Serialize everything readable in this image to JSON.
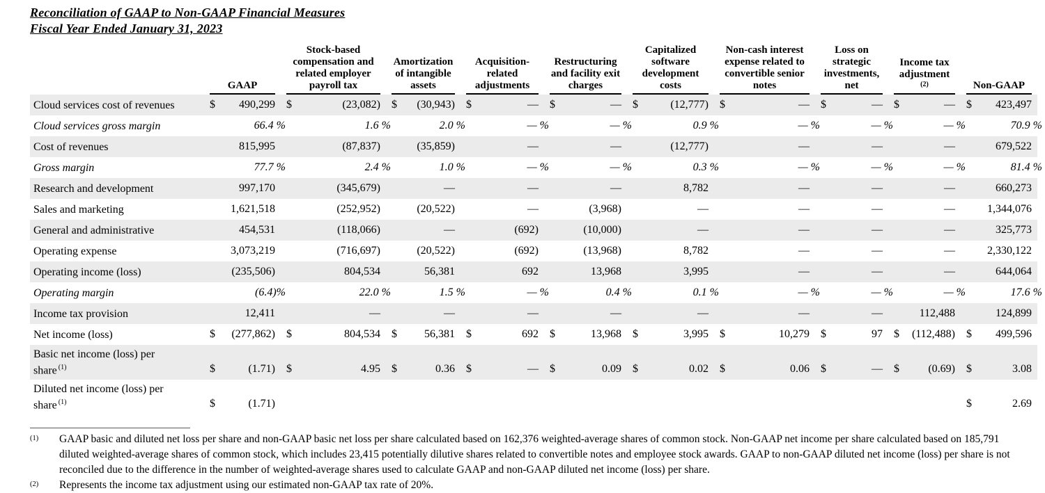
{
  "title": {
    "line1": "Reconciliation of GAAP to Non-GAAP Financial Measures",
    "line2": "Fiscal Year Ended January 31, 2023"
  },
  "table": {
    "value_columns": [
      {
        "label": "GAAP"
      },
      {
        "label": "Stock-based compensation and related employer payroll tax"
      },
      {
        "label": "Amortization of intangible assets"
      },
      {
        "label": "Acquisition-related adjustments"
      },
      {
        "label": "Restructuring and facility exit charges"
      },
      {
        "label": "Capitalized software development costs"
      },
      {
        "label": "Non-cash interest expense related to convertible senior notes"
      },
      {
        "label": "Loss on strategic investments, net"
      },
      {
        "label": "Income tax adjustment",
        "sup": "(2)"
      },
      {
        "label": "Non-GAAP"
      }
    ],
    "rows": [
      {
        "label": "Cloud services cost of revenues",
        "cells": [
          [
            "$",
            "490,299"
          ],
          [
            "$",
            "(23,082)"
          ],
          [
            "$",
            "(30,943)"
          ],
          [
            "$",
            "—"
          ],
          [
            "$",
            "—"
          ],
          [
            "$",
            "(12,777)"
          ],
          [
            "$",
            "—"
          ],
          [
            "$",
            "—"
          ],
          [
            "$",
            "—"
          ],
          [
            "$",
            "423,497"
          ]
        ]
      },
      {
        "label": "Cloud services gross margin",
        "italic": true,
        "cells": [
          [
            "",
            "66.4 %"
          ],
          [
            "",
            "1.6 %"
          ],
          [
            "",
            "2.0 %"
          ],
          [
            "",
            "— %"
          ],
          [
            "",
            "— %"
          ],
          [
            "",
            "0.9 %"
          ],
          [
            "",
            "— %"
          ],
          [
            "",
            "— %"
          ],
          [
            "",
            "— %"
          ],
          [
            "",
            "70.9 %"
          ]
        ]
      },
      {
        "label": "Cost of revenues",
        "cells": [
          [
            "",
            "815,995"
          ],
          [
            "",
            "(87,837)"
          ],
          [
            "",
            "(35,859)"
          ],
          [
            "",
            "—"
          ],
          [
            "",
            "—"
          ],
          [
            "",
            "(12,777)"
          ],
          [
            "",
            "—"
          ],
          [
            "",
            "—"
          ],
          [
            "",
            "—"
          ],
          [
            "",
            "679,522"
          ]
        ]
      },
      {
        "label": "Gross margin",
        "italic": true,
        "cells": [
          [
            "",
            "77.7 %"
          ],
          [
            "",
            "2.4 %"
          ],
          [
            "",
            "1.0 %"
          ],
          [
            "",
            "— %"
          ],
          [
            "",
            "— %"
          ],
          [
            "",
            "0.3 %"
          ],
          [
            "",
            "— %"
          ],
          [
            "",
            "— %"
          ],
          [
            "",
            "— %"
          ],
          [
            "",
            "81.4 %"
          ]
        ]
      },
      {
        "label": "Research and development",
        "cells": [
          [
            "",
            "997,170"
          ],
          [
            "",
            "(345,679)"
          ],
          [
            "",
            "—"
          ],
          [
            "",
            "—"
          ],
          [
            "",
            "—"
          ],
          [
            "",
            "8,782"
          ],
          [
            "",
            "—"
          ],
          [
            "",
            "—"
          ],
          [
            "",
            "—"
          ],
          [
            "",
            "660,273"
          ]
        ]
      },
      {
        "label": "Sales and marketing",
        "cells": [
          [
            "",
            "1,621,518"
          ],
          [
            "",
            "(252,952)"
          ],
          [
            "",
            "(20,522)"
          ],
          [
            "",
            "—"
          ],
          [
            "",
            "(3,968)"
          ],
          [
            "",
            "—"
          ],
          [
            "",
            "—"
          ],
          [
            "",
            "—"
          ],
          [
            "",
            "—"
          ],
          [
            "",
            "1,344,076"
          ]
        ]
      },
      {
        "label": "General and administrative",
        "cells": [
          [
            "",
            "454,531"
          ],
          [
            "",
            "(118,066)"
          ],
          [
            "",
            "—"
          ],
          [
            "",
            "(692)"
          ],
          [
            "",
            "(10,000)"
          ],
          [
            "",
            "—"
          ],
          [
            "",
            "—"
          ],
          [
            "",
            "—"
          ],
          [
            "",
            "—"
          ],
          [
            "",
            "325,773"
          ]
        ]
      },
      {
        "label": "Operating expense",
        "cells": [
          [
            "",
            "3,073,219"
          ],
          [
            "",
            "(716,697)"
          ],
          [
            "",
            "(20,522)"
          ],
          [
            "",
            "(692)"
          ],
          [
            "",
            "(13,968)"
          ],
          [
            "",
            "8,782"
          ],
          [
            "",
            "—"
          ],
          [
            "",
            "—"
          ],
          [
            "",
            "—"
          ],
          [
            "",
            "2,330,122"
          ]
        ]
      },
      {
        "label": "Operating income (loss)",
        "cells": [
          [
            "",
            "(235,506)"
          ],
          [
            "",
            "804,534"
          ],
          [
            "",
            "56,381"
          ],
          [
            "",
            "692"
          ],
          [
            "",
            "13,968"
          ],
          [
            "",
            "3,995"
          ],
          [
            "",
            "—"
          ],
          [
            "",
            "—"
          ],
          [
            "",
            "—"
          ],
          [
            "",
            "644,064"
          ]
        ]
      },
      {
        "label": "Operating margin",
        "italic": true,
        "cells": [
          [
            "",
            "(6.4)%"
          ],
          [
            "",
            "22.0 %"
          ],
          [
            "",
            "1.5 %"
          ],
          [
            "",
            "— %"
          ],
          [
            "",
            "0.4 %"
          ],
          [
            "",
            "0.1 %"
          ],
          [
            "",
            "— %"
          ],
          [
            "",
            "— %"
          ],
          [
            "",
            "— %"
          ],
          [
            "",
            "17.6 %"
          ]
        ]
      },
      {
        "label": "Income tax provision",
        "cells": [
          [
            "",
            "12,411"
          ],
          [
            "",
            "—"
          ],
          [
            "",
            "—"
          ],
          [
            "",
            "—"
          ],
          [
            "",
            "—"
          ],
          [
            "",
            "—"
          ],
          [
            "",
            "—"
          ],
          [
            "",
            "—"
          ],
          [
            "",
            "112,488"
          ],
          [
            "",
            "124,899"
          ]
        ]
      },
      {
        "label": "Net income (loss)",
        "cells": [
          [
            "$",
            "(277,862)"
          ],
          [
            "$",
            "804,534"
          ],
          [
            "$",
            "56,381"
          ],
          [
            "$",
            "692"
          ],
          [
            "$",
            "13,968"
          ],
          [
            "$",
            "3,995"
          ],
          [
            "$",
            "10,279"
          ],
          [
            "$",
            "97"
          ],
          [
            "$",
            "(112,488)"
          ],
          [
            "$",
            "499,596"
          ]
        ]
      },
      {
        "label": "Basic net income (loss) per share",
        "label_sup": "(1)",
        "tall": true,
        "cells": [
          [
            "$",
            "(1.71)"
          ],
          [
            "$",
            "4.95"
          ],
          [
            "$",
            "0.36"
          ],
          [
            "$",
            "—"
          ],
          [
            "$",
            "0.09"
          ],
          [
            "$",
            "0.02"
          ],
          [
            "$",
            "0.06"
          ],
          [
            "$",
            "—"
          ],
          [
            "$",
            "(0.69)"
          ],
          [
            "$",
            "3.08"
          ]
        ]
      },
      {
        "label": "Diluted net income (loss) per share",
        "label_sup": "(1)",
        "tall": true,
        "cells": [
          [
            "$",
            "(1.71)"
          ],
          null,
          null,
          null,
          null,
          null,
          null,
          null,
          null,
          [
            "$",
            "2.69"
          ]
        ]
      }
    ]
  },
  "footnotes": [
    {
      "marker": "(1)",
      "text": "GAAP basic and diluted net loss per share and non-GAAP basic net loss per share calculated based on 162,376 weighted-average shares of common stock. Non-GAAP net income per share calculated based on 185,791 diluted weighted-average shares of common stock, which includes 23,415 potentially dilutive shares related to convertible notes and employee stock awards. GAAP to non-GAAP diluted net income (loss) per share is not reconciled due to the difference in the number of weighted-average shares used to calculate GAAP and non-GAAP diluted net income (loss) per share."
    },
    {
      "marker": "(2)",
      "text": "Represents the income tax adjustment using our estimated non-GAAP tax rate of 20%."
    }
  ],
  "colors": {
    "row_stripe": "#ebebeb",
    "text": "#000000",
    "header_rule": "#000000"
  }
}
